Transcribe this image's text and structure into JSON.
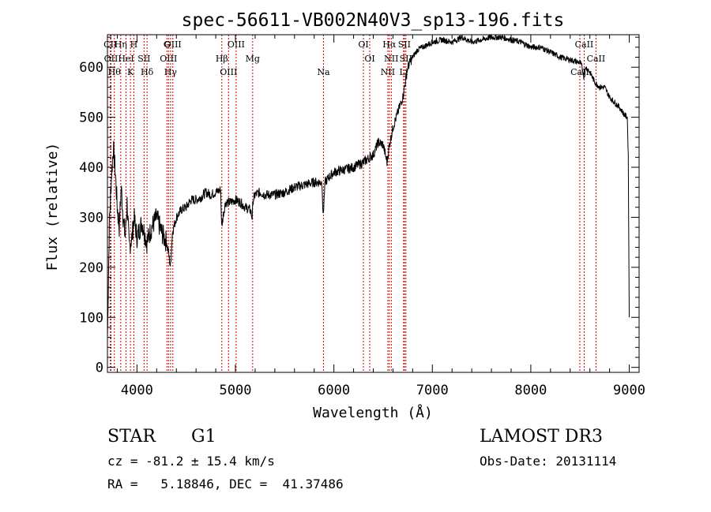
{
  "chart_data": {
    "type": "line",
    "title": "spec-56611-VB002N40V3_sp13-196.fits",
    "xlabel": "Wavelength (Å)",
    "ylabel": "Flux (relative)",
    "xlim": [
      3700,
      9100
    ],
    "ylim": [
      -10,
      665
    ],
    "x_ticks": [
      4000,
      5000,
      6000,
      7000,
      8000,
      9000
    ],
    "y_ticks": [
      0,
      100,
      200,
      300,
      400,
      500,
      600
    ],
    "grid": false,
    "series": [
      {
        "name": "flux",
        "x": [
          3700,
          3720,
          3740,
          3760,
          3780,
          3800,
          3820,
          3840,
          3860,
          3880,
          3900,
          3920,
          3950,
          3970,
          4000,
          4050,
          4100,
          4150,
          4200,
          4250,
          4300,
          4320,
          4340,
          4360,
          4400,
          4450,
          4500,
          4550,
          4600,
          4650,
          4700,
          4750,
          4800,
          4850,
          4860,
          4880,
          4900,
          4950,
          5000,
          5050,
          5100,
          5150,
          5170,
          5180,
          5200,
          5250,
          5300,
          5400,
          5500,
          5600,
          5700,
          5800,
          5880,
          5890,
          5910,
          5950,
          6000,
          6100,
          6200,
          6300,
          6400,
          6450,
          6500,
          6540,
          6560,
          6580,
          6600,
          6650,
          6700,
          6750,
          6800,
          6850,
          6900,
          6950,
          7000,
          7100,
          7200,
          7300,
          7400,
          7500,
          7600,
          7700,
          7800,
          7900,
          8000,
          8100,
          8200,
          8300,
          8400,
          8480,
          8500,
          8520,
          8540,
          8560,
          8600,
          8650,
          8700,
          8750,
          8800,
          8850,
          8900,
          8950,
          8980,
          8990,
          9000
        ],
        "y": [
          60,
          290,
          380,
          440,
          390,
          320,
          280,
          360,
          300,
          260,
          330,
          240,
          260,
          300,
          260,
          290,
          250,
          280,
          300,
          270,
          250,
          230,
          200,
          270,
          300,
          315,
          320,
          335,
          335,
          340,
          350,
          345,
          350,
          355,
          280,
          310,
          330,
          330,
          335,
          330,
          320,
          315,
          300,
          335,
          345,
          350,
          345,
          345,
          350,
          360,
          365,
          370,
          370,
          300,
          370,
          380,
          390,
          395,
          400,
          410,
          425,
          450,
          445,
          410,
          440,
          460,
          480,
          510,
          540,
          600,
          620,
          635,
          640,
          645,
          650,
          655,
          650,
          660,
          650,
          655,
          660,
          660,
          655,
          650,
          640,
          640,
          630,
          620,
          615,
          610,
          610,
          600,
          580,
          600,
          590,
          570,
          560,
          560,
          540,
          530,
          520,
          505,
          500,
          420,
          100
        ]
      }
    ],
    "lines": [
      {
        "name": "CII",
        "wl": 3730
      },
      {
        "name": "OII",
        "wl": 3736
      },
      {
        "name": "Hθ",
        "wl": 3770
      },
      {
        "name": "Hη",
        "wl": 3835
      },
      {
        "name": "HeI",
        "wl": 3889
      },
      {
        "name": "K",
        "wl": 3934
      },
      {
        "name": "H",
        "wl": 3968
      },
      {
        "name": "SII",
        "wl": 4072
      },
      {
        "name": "Hδ",
        "wl": 4102
      },
      {
        "name": "G",
        "wl": 4304
      },
      {
        "name": "OIII",
        "wl": 4320
      },
      {
        "name": "Hγ",
        "wl": 4341
      },
      {
        "name": "OIII",
        "wl": 4364
      },
      {
        "name": "Hβ",
        "wl": 4862
      },
      {
        "name": "OIII",
        "wl": 4930
      },
      {
        "name": "OIII",
        "wl": 5007
      },
      {
        "name": "Mg",
        "wl": 5175
      },
      {
        "name": "Na",
        "wl": 5894
      },
      {
        "name": "OI",
        "wl": 6300
      },
      {
        "name": "OI",
        "wl": 6364
      },
      {
        "name": "NII",
        "wl": 6548
      },
      {
        "name": "Hα",
        "wl": 6563
      },
      {
        "name": "NII",
        "wl": 6583
      },
      {
        "name": "Li",
        "wl": 6708
      },
      {
        "name": "SII",
        "wl": 6716
      },
      {
        "name": "SII",
        "wl": 6731
      },
      {
        "name": "CaII",
        "wl": 8498
      },
      {
        "name": "CaII",
        "wl": 8542
      },
      {
        "name": "CaII",
        "wl": 8662
      }
    ]
  },
  "info": {
    "object_class": "STAR",
    "subclass": "G1",
    "cz": "cz = -81.2 ± 15.4 km/s",
    "coords": "RA =   5.18846, DEC =  41.37486",
    "survey": "LAMOST DR3",
    "obs_date": "Obs-Date: 20131114"
  },
  "colors": {
    "spectrum": "#000000",
    "line_marker": "#cc0000",
    "axis": "#000000"
  }
}
